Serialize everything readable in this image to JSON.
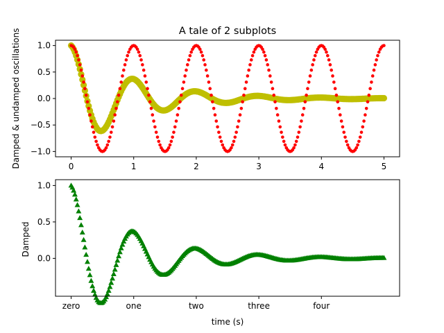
{
  "chart_data": [
    {
      "type": "scatter",
      "title": "A tale of 2 subplots",
      "xlabel": "",
      "ylabel": "Damped & undamped oscillations",
      "xlim": [
        -0.25,
        5.25
      ],
      "ylim": [
        -1.1,
        1.1
      ],
      "xticks": [
        0,
        1,
        2,
        3,
        4,
        5
      ],
      "xtick_labels": [
        "0",
        "1",
        "2",
        "3",
        "4",
        "5"
      ],
      "yticks": [
        -1.0,
        -0.5,
        0.0,
        0.5,
        1.0
      ],
      "ytick_labels": [
        "−1.0",
        "−0.5",
        "0.0",
        "0.5",
        "1.0"
      ],
      "grid": false,
      "series": [
        {
          "function": "cos(2*pi*t) * exp(-t)",
          "t_range": [
            0,
            5
          ],
          "step": 0.02,
          "color": "#bfbf00",
          "marker": "circle-large"
        },
        {
          "function": "cos(2*pi*t)",
          "t_range": [
            0,
            5
          ],
          "step": 0.02,
          "color": "#ff0000",
          "marker": "dot"
        }
      ]
    },
    {
      "type": "scatter",
      "title": "",
      "xlabel": "time (s)",
      "ylabel": "Damped",
      "xlim": [
        -0.25,
        5.25
      ],
      "ylim": [
        -0.52,
        1.08
      ],
      "xticks": [
        0,
        1,
        2,
        3,
        4
      ],
      "xtick_labels": [
        "zero",
        "one",
        "two",
        "three",
        "four"
      ],
      "yticks": [
        0.0,
        0.5,
        1.0
      ],
      "ytick_labels": [
        "0.0",
        "0.5",
        "1.0"
      ],
      "grid": false,
      "series": [
        {
          "function": "cos(2*pi*t) * exp(-t)",
          "t_range": [
            0,
            5
          ],
          "step": 0.02,
          "color": "#008000",
          "marker": "triangle-up"
        }
      ]
    }
  ]
}
